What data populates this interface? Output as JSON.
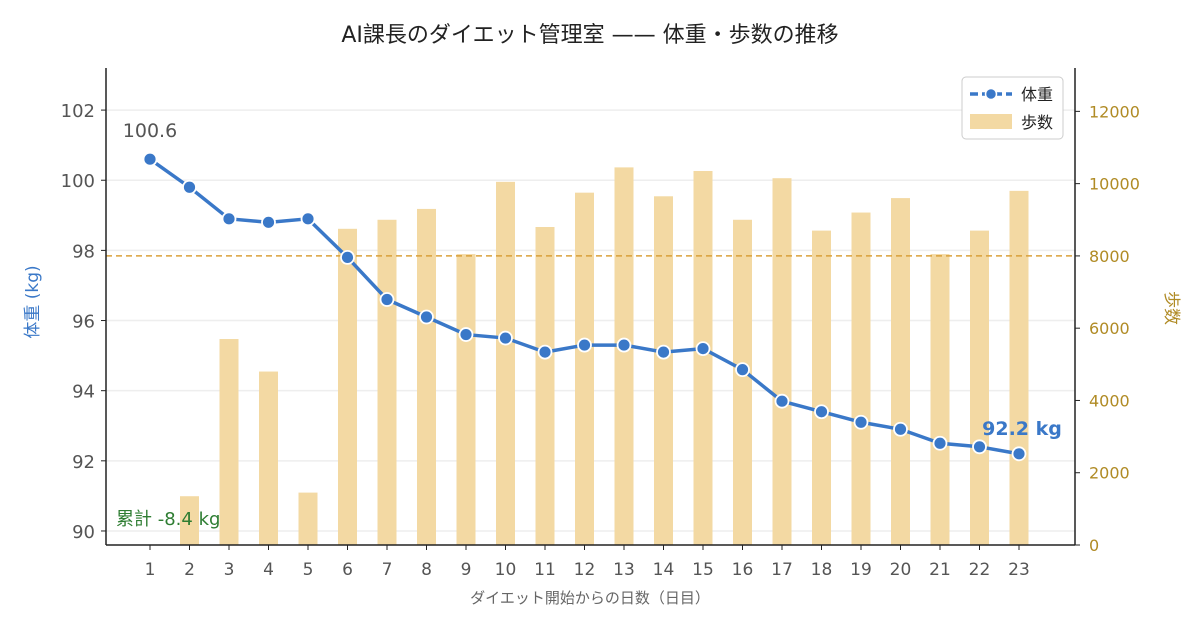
{
  "chart_data": {
    "type": "bar+line",
    "title": "AI課長のダイエット管理室 —— 体重・歩数の推移",
    "xlabel": "ダイエット開始からの日数（日目）",
    "ylabel_left": "体重 (kg)",
    "ylabel_right": "歩数",
    "x": [
      1,
      2,
      3,
      4,
      5,
      6,
      7,
      8,
      9,
      10,
      11,
      12,
      13,
      14,
      15,
      16,
      17,
      18,
      19,
      20,
      21,
      22,
      23
    ],
    "series": [
      {
        "name": "体重",
        "axis": "left",
        "type": "line",
        "values": [
          100.6,
          99.8,
          98.9,
          98.8,
          98.9,
          97.8,
          96.6,
          96.1,
          95.6,
          95.5,
          95.1,
          95.3,
          95.3,
          95.1,
          95.2,
          94.6,
          93.7,
          93.4,
          93.1,
          92.9,
          92.5,
          92.4,
          92.2
        ]
      },
      {
        "name": "歩数",
        "axis": "right",
        "type": "bar",
        "values": [
          0,
          1350,
          5700,
          4800,
          1450,
          8750,
          9000,
          9300,
          8050,
          10050,
          8800,
          9750,
          10450,
          9650,
          10350,
          9000,
          10150,
          8700,
          9200,
          9600,
          8050,
          8700,
          9800
        ]
      }
    ],
    "ylim_left": [
      89.6,
      103.2
    ],
    "yticks_left": [
      90,
      92,
      94,
      96,
      98,
      100,
      102
    ],
    "ylim_right": [
      0,
      13200
    ],
    "yticks_right": [
      0,
      2000,
      4000,
      6000,
      8000,
      10000,
      12000
    ],
    "reference_line": {
      "axis": "right",
      "value": 8000
    },
    "annotations": {
      "start": "100.6",
      "end": "92.2 kg",
      "total": "累計 -8.4 kg"
    },
    "grid": "horizontal",
    "legend_position": "top-right",
    "colors": {
      "weight": "#3a78c8",
      "steps": "#f3d9a3",
      "steps_axis": "#b08b25",
      "reference": "#d9a03a",
      "total": "#2e7d32",
      "tick": "#555555"
    }
  }
}
